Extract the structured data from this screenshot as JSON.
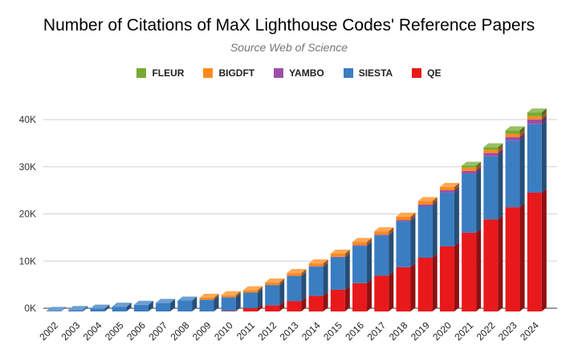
{
  "chart_data": {
    "type": "bar",
    "stacked": true,
    "style": "3d",
    "title": "Number of Citations of MaX Lighthouse Codes' Reference Papers",
    "subtitle": "Source Web of Science",
    "xlabel": "",
    "ylabel": "",
    "ylim": [
      0,
      40000
    ],
    "y_ticks": [
      0,
      10000,
      20000,
      30000,
      40000
    ],
    "y_tick_labels": [
      "0K",
      "10K",
      "20K",
      "30K",
      "40K"
    ],
    "grid": true,
    "legend_position": "top",
    "legend_order": [
      "FLEUR",
      "BIGDFT",
      "YAMBO",
      "SIESTA",
      "QE"
    ],
    "categories": [
      "2002",
      "2003",
      "2004",
      "2005",
      "2006",
      "2007",
      "2008",
      "2009",
      "2010",
      "2011",
      "2012",
      "2013",
      "2014",
      "2015",
      "2016",
      "2017",
      "2018",
      "2019",
      "2020",
      "2021",
      "2022",
      "2023",
      "2024"
    ],
    "series": [
      {
        "name": "QE",
        "color": "#e8191b",
        "values": [
          0,
          0,
          0,
          0,
          0,
          0,
          0,
          0,
          100,
          700,
          1300,
          2200,
          3300,
          4600,
          6000,
          7600,
          9400,
          11400,
          13800,
          16700,
          19500,
          22100,
          25200
        ]
      },
      {
        "name": "SIESTA",
        "color": "#3b7dc1",
        "values": [
          100,
          300,
          600,
          1000,
          1400,
          1800,
          2300,
          2500,
          2900,
          3300,
          4300,
          5300,
          6200,
          6900,
          7900,
          8500,
          9700,
          10900,
          11400,
          12500,
          13400,
          14100,
          14500
        ]
      },
      {
        "name": "YAMBO",
        "color": "#9c4fa8",
        "values": [
          0,
          0,
          0,
          0,
          0,
          0,
          0,
          0,
          0,
          0,
          0,
          100,
          100,
          100,
          150,
          200,
          300,
          400,
          500,
          600,
          700,
          800,
          1000
        ]
      },
      {
        "name": "BIGDFT",
        "color": "#ff8a1c",
        "values": [
          0,
          0,
          0,
          0,
          0,
          0,
          0,
          400,
          450,
          500,
          550,
          550,
          600,
          650,
          700,
          700,
          700,
          700,
          700,
          700,
          700,
          700,
          700
        ]
      },
      {
        "name": "FLEUR",
        "color": "#75ab32",
        "values": [
          0,
          0,
          0,
          0,
          0,
          0,
          0,
          0,
          0,
          0,
          0,
          0,
          0,
          0,
          0,
          0,
          0,
          0,
          0,
          400,
          500,
          700,
          800
        ]
      }
    ]
  }
}
